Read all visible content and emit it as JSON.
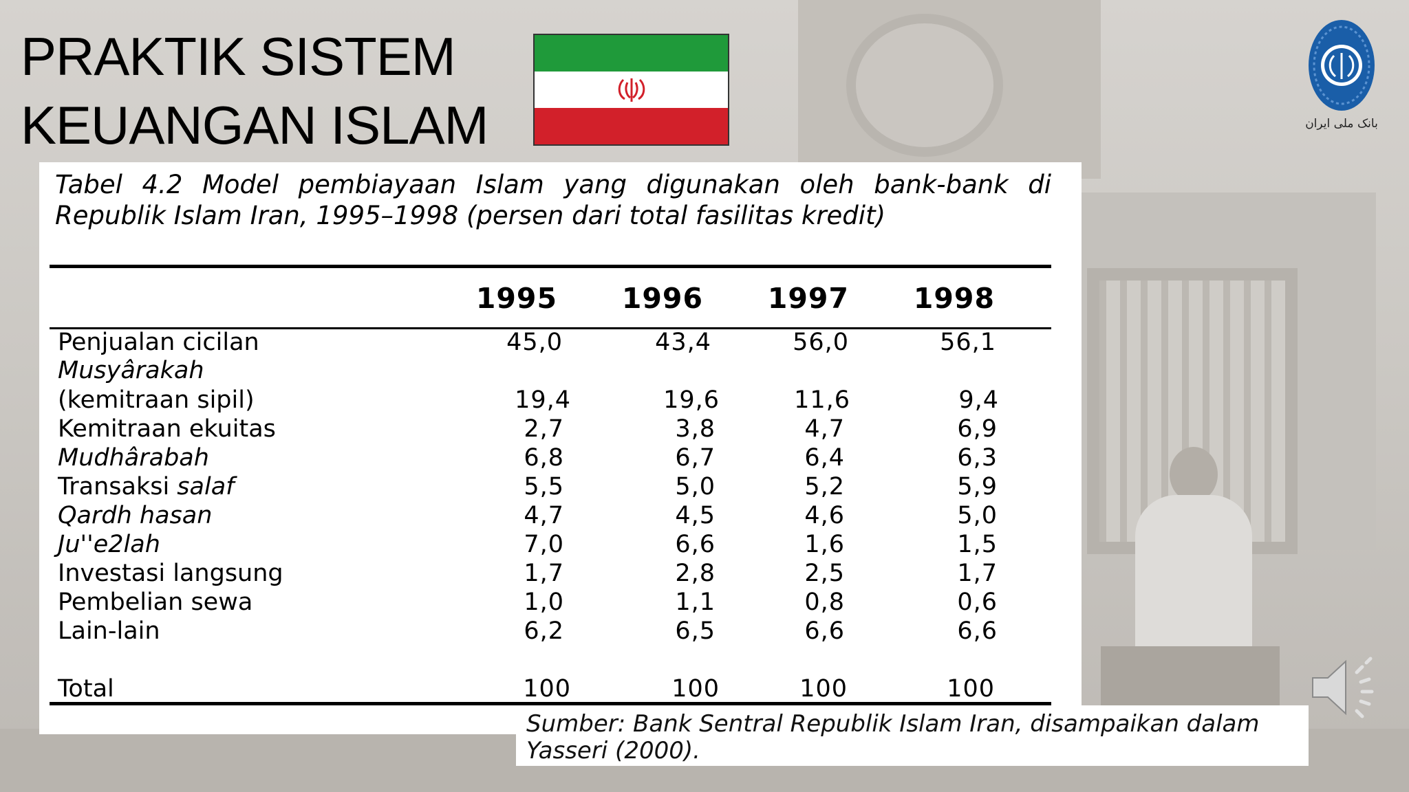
{
  "title_lines": [
    "PRAKTIK SISTEM",
    "KEUANGAN ISLAM"
  ],
  "caption": "Tabel 4.2 Model pembiayaan Islam yang digunakan oleh bank-bank di Republik Islam Iran, 1995–1998 (persen dari total fasilitas kredit)",
  "years": [
    "1995",
    "1996",
    "1997",
    "1998"
  ],
  "rows": [
    {
      "label": "Penjualan cicilan",
      "label_prefix": "",
      "label_italic": "",
      "values": [
        "45,0",
        "43,4",
        "56,0",
        "56,1"
      ]
    },
    {
      "label": "",
      "label_prefix": "",
      "label_italic": "Musyârakah",
      "values": []
    },
    {
      "label": "(kemitraan sipil)",
      "label_prefix": "",
      "label_italic": "",
      "values": [
        "19,4",
        "19,6",
        "11,6",
        "9,4"
      ]
    },
    {
      "label": "Kemitraan ekuitas",
      "label_prefix": "",
      "label_italic": "",
      "values": [
        "2,7",
        "3,8",
        "4,7",
        "6,9"
      ]
    },
    {
      "label": "",
      "label_prefix": "",
      "label_italic": "Mudhârabah",
      "values": [
        "6,8",
        "6,7",
        "6,4",
        "6,3"
      ]
    },
    {
      "label": "",
      "label_prefix": "Transaksi ",
      "label_italic": "salaf",
      "values": [
        "5,5",
        "5,0",
        "5,2",
        "5,9"
      ]
    },
    {
      "label": "",
      "label_prefix": "",
      "label_italic": "Qardh hasan",
      "values": [
        "4,7",
        "4,5",
        "4,6",
        "5,0"
      ]
    },
    {
      "label": "",
      "label_prefix": "",
      "label_italic": "Ju''e2lah",
      "values": [
        "7,0",
        "6,6",
        "1,6",
        "1,5"
      ]
    },
    {
      "label": "Investasi langsung",
      "label_prefix": "",
      "label_italic": "",
      "values": [
        "1,7",
        "2,8",
        "2,5",
        "1,7"
      ]
    },
    {
      "label": "Pembelian sewa",
      "label_prefix": "",
      "label_italic": "",
      "values": [
        "1,0",
        "1,1",
        "0,8",
        "0,6"
      ]
    },
    {
      "label": "Lain-lain",
      "label_prefix": "",
      "label_italic": "",
      "values": [
        "6,2",
        "6,5",
        "6,6",
        "6,6"
      ]
    }
  ],
  "total": {
    "label": "Total",
    "values": [
      "100",
      "100",
      "100",
      "100"
    ]
  },
  "source": "Sumber: Bank Sentral Republik Islam Iran, disampaikan dalam Yasseri (2000).",
  "logo_text": "بانک ملی ایران",
  "colors": {
    "flag_green": "#1f9a3a",
    "flag_red": "#d2202a",
    "logo_blue": "#1a5ea8"
  },
  "icons": {
    "flag": "iran-flag-icon",
    "logo": "bank-melli-logo-icon",
    "audio": "speaker-icon"
  }
}
